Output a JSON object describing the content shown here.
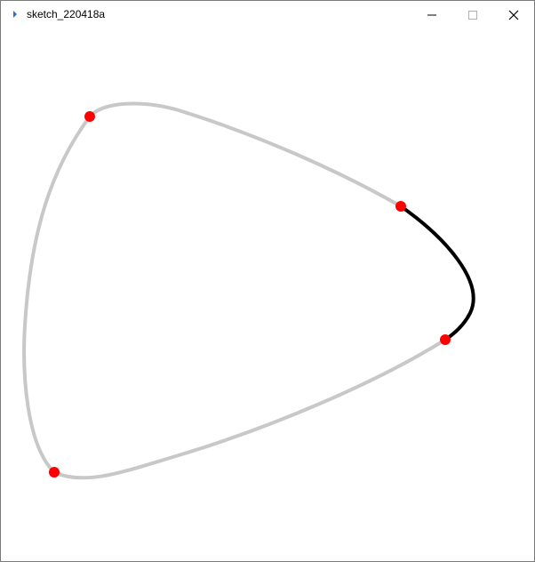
{
  "window": {
    "title": "sketch_220418a",
    "controls": [
      "minimize",
      "maximize",
      "close"
    ]
  },
  "icons": {
    "app": "processing-app-icon",
    "minimize": "minimize-icon",
    "maximize": "maximize-icon",
    "close": "close-icon"
  },
  "sketch": {
    "control_point_color": "#ff0000",
    "inactive_curve_color": "#c8c8c8",
    "active_curve_color": "#000000",
    "background_color": "#ffffff"
  }
}
